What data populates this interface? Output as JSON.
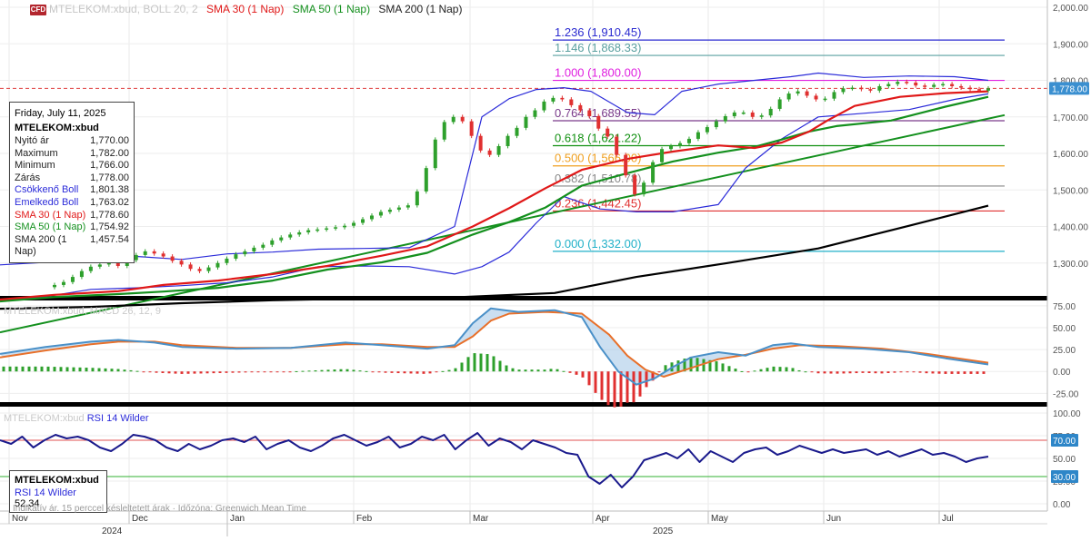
{
  "header": {
    "indicator_faint": "MTELEKOM:xbud, BOLL 20, 2",
    "sma30": "SMA 30 (1 Nap)",
    "sma50": "SMA 50 (1 Nap)",
    "sma200": "SMA 200 (1 Nap)",
    "badge": "CFD"
  },
  "colors": {
    "price_up": "#2ea02c",
    "price_down": "#e03030",
    "boll": "#2b2bd9",
    "sma30": "#e01818",
    "sma50": "#14901e",
    "sma200": "#000000",
    "macd_line": "#4a90c8",
    "macd_signal": "#e8702a",
    "rsi": "#1a1a8c",
    "rsi_high": "#e05050",
    "rsi_low": "#30b030",
    "price_dashed": "#e04040",
    "separator": "#000000"
  },
  "info_box": {
    "date": "Friday, July 11, 2025",
    "symbol": "MTELEKOM:xbud",
    "rows": [
      {
        "label": "Nyitó ár",
        "value": "1,770.00",
        "color": "#222222"
      },
      {
        "label": "Maximum",
        "value": "1,782.00",
        "color": "#222222"
      },
      {
        "label": "Minimum",
        "value": "1,766.00",
        "color": "#222222"
      },
      {
        "label": "Zárás",
        "value": "1,778.00",
        "color": "#222222"
      },
      {
        "label": "Csökkenő Boll",
        "value": "1,801.38",
        "color": "#2b2bd9"
      },
      {
        "label": "Emelkedő Boll",
        "value": "1,763.02",
        "color": "#2b2bd9"
      },
      {
        "label": "SMA 30 (1 Nap)",
        "value": "1,778.60",
        "color": "#e01818"
      },
      {
        "label": "SMA 50 (1 Nap)",
        "value": "1,754.92",
        "color": "#14901e"
      },
      {
        "label": "SMA 200 (1 Nap)",
        "value": "1,457.54",
        "color": "#222222"
      }
    ]
  },
  "rsi_box": {
    "symbol": "MTELEKOM:xbud",
    "label": "RSI 14 Wilder",
    "value": "52.34"
  },
  "panel_labels": {
    "macd": "MTELEKOM:xbud, MACD 26, 12, 9",
    "rsi_prefix": "MTELEKOM:xbud",
    "rsi": "RSI 14 Wilder"
  },
  "footer_note": "Indikatív ár. 15 perccel késleltetett árak · Időzóna: Greenwich Mean Time",
  "x_axis": {
    "months": [
      "Nov",
      "Dec",
      "Jan",
      "Feb",
      "Mar",
      "Apr",
      "May",
      "Jun",
      "Jul"
    ],
    "years": [
      "2024",
      "2025"
    ]
  },
  "chart_data": [
    {
      "type": "candlestick",
      "title": "MTELEKOM:xbud",
      "ylim": [
        1210,
        2020
      ],
      "y_ticks": [
        "2,000.00",
        "1,900.00",
        "1,800.00",
        "1,700.00",
        "1,600.00",
        "1,500.00",
        "1,400.00",
        "1,300.00"
      ],
      "y_tick_values": [
        2000,
        1900,
        1800,
        1700,
        1600,
        1500,
        1400,
        1300
      ],
      "last_price_label": "1,778.00",
      "last_price": 1778,
      "close_series": [
        1240,
        1248,
        1262,
        1278,
        1290,
        1296,
        1300,
        1292,
        1308,
        1322,
        1332,
        1326,
        1318,
        1306,
        1296,
        1284,
        1278,
        1288,
        1300,
        1312,
        1324,
        1332,
        1342,
        1350,
        1362,
        1370,
        1378,
        1384,
        1390,
        1392,
        1395,
        1398,
        1402,
        1410,
        1420,
        1430,
        1440,
        1446,
        1452,
        1458,
        1496,
        1560,
        1638,
        1686,
        1700,
        1688,
        1648,
        1608,
        1596,
        1620,
        1648,
        1670,
        1700,
        1718,
        1742,
        1752,
        1748,
        1732,
        1718,
        1702,
        1668,
        1646,
        1596,
        1540,
        1488,
        1520,
        1576,
        1612,
        1620,
        1628,
        1640,
        1658,
        1672,
        1688,
        1702,
        1712,
        1712,
        1700,
        1704,
        1722,
        1748,
        1764,
        1770,
        1758,
        1748,
        1750,
        1768,
        1778,
        1780,
        1776,
        1772,
        1784,
        1790,
        1796,
        1794,
        1786,
        1782,
        1788,
        1790,
        1784,
        1780,
        1776,
        1772,
        1778
      ],
      "sma30": [
        [
          0,
          1200
        ],
        [
          60,
          1213
        ],
        [
          130,
          1223
        ],
        [
          180,
          1240
        ],
        [
          240,
          1252
        ],
        [
          300,
          1270
        ],
        [
          360,
          1292
        ],
        [
          420,
          1320
        ],
        [
          470,
          1346
        ],
        [
          520,
          1400
        ],
        [
          560,
          1450
        ],
        [
          600,
          1505
        ],
        [
          640,
          1555
        ],
        [
          690,
          1585
        ],
        [
          740,
          1605
        ],
        [
          790,
          1622
        ],
        [
          830,
          1615
        ],
        [
          860,
          1630
        ],
        [
          890,
          1660
        ],
        [
          910,
          1690
        ],
        [
          940,
          1730
        ],
        [
          990,
          1755
        ],
        [
          1040,
          1765
        ],
        [
          1087,
          1770
        ]
      ],
      "sma50": [
        [
          0,
          1195
        ],
        [
          60,
          1207
        ],
        [
          130,
          1215
        ],
        [
          180,
          1222
        ],
        [
          240,
          1232
        ],
        [
          300,
          1252
        ],
        [
          360,
          1282
        ],
        [
          420,
          1302
        ],
        [
          470,
          1328
        ],
        [
          520,
          1378
        ],
        [
          560,
          1412
        ],
        [
          600,
          1452
        ],
        [
          640,
          1512
        ],
        [
          690,
          1546
        ],
        [
          740,
          1578
        ],
        [
          790,
          1602
        ],
        [
          830,
          1618
        ],
        [
          860,
          1638
        ],
        [
          890,
          1660
        ],
        [
          920,
          1675
        ],
        [
          980,
          1690
        ],
        [
          1040,
          1728
        ],
        [
          1087,
          1755
        ]
      ],
      "sma200": [
        [
          0,
          1175
        ],
        [
          100,
          1180
        ],
        [
          200,
          1190
        ],
        [
          300,
          1198
        ],
        [
          400,
          1203
        ],
        [
          500,
          1206
        ],
        [
          610,
          1218
        ],
        [
          700,
          1262
        ],
        [
          800,
          1300
        ],
        [
          900,
          1340
        ],
        [
          1000,
          1402
        ],
        [
          1087,
          1457
        ]
      ],
      "long_trendline": [
        [
          0,
          1110
        ],
        [
          1105,
          1705
        ]
      ],
      "boll_upper": [
        [
          0,
          1295
        ],
        [
          50,
          1302
        ],
        [
          100,
          1318
        ],
        [
          150,
          1318
        ],
        [
          200,
          1310
        ],
        [
          250,
          1325
        ],
        [
          300,
          1330
        ],
        [
          350,
          1338
        ],
        [
          400,
          1340
        ],
        [
          450,
          1342
        ],
        [
          500,
          1400
        ],
        [
          530,
          1700
        ],
        [
          560,
          1750
        ],
        [
          590,
          1775
        ],
        [
          620,
          1780
        ],
        [
          650,
          1770
        ],
        [
          690,
          1712
        ],
        [
          720,
          1706
        ],
        [
          750,
          1770
        ],
        [
          790,
          1790
        ],
        [
          830,
          1800
        ],
        [
          870,
          1810
        ],
        [
          900,
          1820
        ],
        [
          950,
          1808
        ],
        [
          1000,
          1812
        ],
        [
          1050,
          1810
        ],
        [
          1087,
          1800
        ]
      ],
      "boll_lower": [
        [
          0,
          1198
        ],
        [
          50,
          1208
        ],
        [
          100,
          1228
        ],
        [
          150,
          1232
        ],
        [
          200,
          1238
        ],
        [
          250,
          1246
        ],
        [
          300,
          1262
        ],
        [
          350,
          1290
        ],
        [
          400,
          1292
        ],
        [
          450,
          1290
        ],
        [
          500,
          1270
        ],
        [
          530,
          1290
        ],
        [
          560,
          1330
        ],
        [
          590,
          1410
        ],
        [
          620,
          1482
        ],
        [
          660,
          1448
        ],
        [
          700,
          1440
        ],
        [
          740,
          1440
        ],
        [
          790,
          1460
        ],
        [
          820,
          1560
        ],
        [
          860,
          1640
        ],
        [
          900,
          1700
        ],
        [
          950,
          1710
        ],
        [
          1000,
          1720
        ],
        [
          1050,
          1748
        ],
        [
          1087,
          1763
        ]
      ],
      "fibonacci": [
        {
          "ratio": "1.236",
          "price": 1910.45,
          "label": "1.236 (1,910.45)",
          "color": "#2a2ad0"
        },
        {
          "ratio": "1.146",
          "price": 1868.33,
          "label": "1.146 (1,868.33)",
          "color": "#5aa0a0"
        },
        {
          "ratio": "1.000",
          "price": 1800.0,
          "label": "1.000 (1,800.00)",
          "color": "#e020e0"
        },
        {
          "ratio": "0.764",
          "price": 1689.55,
          "label": "0.764 (1,689.55)",
          "color": "#7a3a8a"
        },
        {
          "ratio": "0.618",
          "price": 1621.22,
          "label": "0.618 (1,621.22)",
          "color": "#119011"
        },
        {
          "ratio": "0.500",
          "price": 1566.0,
          "label": "0.500 (1,566.00)",
          "color": "#f0a020"
        },
        {
          "ratio": "0.382",
          "price": 1510.78,
          "label": "0.382 (1,510.78)",
          "color": "#888888"
        },
        {
          "ratio": "0.236",
          "price": 1442.45,
          "label": "0.236 (1,442.45)",
          "color": "#e03030"
        },
        {
          "ratio": "0.000",
          "price": 1332.0,
          "label": "0.000 (1,332.00)",
          "color": "#20b0c8"
        }
      ]
    },
    {
      "type": "macd",
      "title": "MACD 26, 12, 9",
      "ylim": [
        -35,
        80
      ],
      "y_ticks": [
        "75.00",
        "50.00",
        "25.00",
        "0.00",
        "-25.00"
      ],
      "y_tick_values": [
        75,
        50,
        25,
        0,
        -25
      ],
      "macd_line": [
        [
          0,
          20
        ],
        [
          50,
          28
        ],
        [
          100,
          34
        ],
        [
          130,
          36
        ],
        [
          170,
          33
        ],
        [
          200,
          28
        ],
        [
          260,
          26
        ],
        [
          320,
          27
        ],
        [
          380,
          33
        ],
        [
          420,
          30
        ],
        [
          470,
          26
        ],
        [
          500,
          30
        ],
        [
          520,
          55
        ],
        [
          540,
          72
        ],
        [
          555,
          70
        ],
        [
          570,
          68
        ],
        [
          610,
          70
        ],
        [
          640,
          62
        ],
        [
          660,
          28
        ],
        [
          680,
          0
        ],
        [
          700,
          -15
        ],
        [
          720,
          -8
        ],
        [
          740,
          5
        ],
        [
          760,
          16
        ],
        [
          790,
          22
        ],
        [
          820,
          18
        ],
        [
          850,
          30
        ],
        [
          870,
          32
        ],
        [
          900,
          28
        ],
        [
          950,
          26
        ],
        [
          1000,
          22
        ],
        [
          1040,
          15
        ],
        [
          1087,
          8
        ]
      ],
      "signal_line": [
        [
          0,
          16
        ],
        [
          50,
          24
        ],
        [
          100,
          31
        ],
        [
          130,
          34
        ],
        [
          170,
          34
        ],
        [
          200,
          30
        ],
        [
          260,
          27
        ],
        [
          320,
          27
        ],
        [
          380,
          31
        ],
        [
          420,
          31
        ],
        [
          470,
          28
        ],
        [
          500,
          28
        ],
        [
          520,
          40
        ],
        [
          540,
          58
        ],
        [
          560,
          66
        ],
        [
          600,
          68
        ],
        [
          640,
          66
        ],
        [
          670,
          42
        ],
        [
          690,
          18
        ],
        [
          710,
          2
        ],
        [
          730,
          -6
        ],
        [
          760,
          4
        ],
        [
          790,
          14
        ],
        [
          820,
          19
        ],
        [
          850,
          26
        ],
        [
          880,
          30
        ],
        [
          920,
          29
        ],
        [
          970,
          26
        ],
        [
          1020,
          20
        ],
        [
          1060,
          14
        ],
        [
          1087,
          10
        ]
      ],
      "histogram_fraction_of_range": "derived from macd_line − signal_line"
    },
    {
      "type": "rsi",
      "title": "RSI 14 Wilder",
      "ylim": [
        0,
        100
      ],
      "y_ticks": [
        "100.00",
        "75.00",
        "50.00",
        "25.00",
        "0.00"
      ],
      "y_tick_values": [
        100,
        75,
        50,
        25,
        0
      ],
      "upper_band_label": "70.00",
      "lower_band_label": "30.00",
      "upper_band": 70,
      "lower_band": 30,
      "values": [
        70,
        66,
        74,
        62,
        70,
        76,
        72,
        74,
        70,
        62,
        58,
        66,
        76,
        74,
        70,
        62,
        58,
        66,
        60,
        64,
        70,
        72,
        68,
        74,
        60,
        66,
        70,
        62,
        58,
        64,
        72,
        76,
        70,
        64,
        68,
        74,
        62,
        66,
        74,
        70,
        76,
        60,
        70,
        78,
        64,
        72,
        68,
        60,
        70,
        66,
        62,
        56,
        54,
        30,
        22,
        32,
        18,
        30,
        48,
        52,
        56,
        50,
        60,
        46,
        58,
        52,
        46,
        56,
        60,
        62,
        54,
        58,
        64,
        60,
        56,
        60,
        56,
        58,
        60,
        54,
        58,
        52,
        56,
        60,
        54,
        56,
        52,
        46,
        50,
        52
      ]
    }
  ]
}
